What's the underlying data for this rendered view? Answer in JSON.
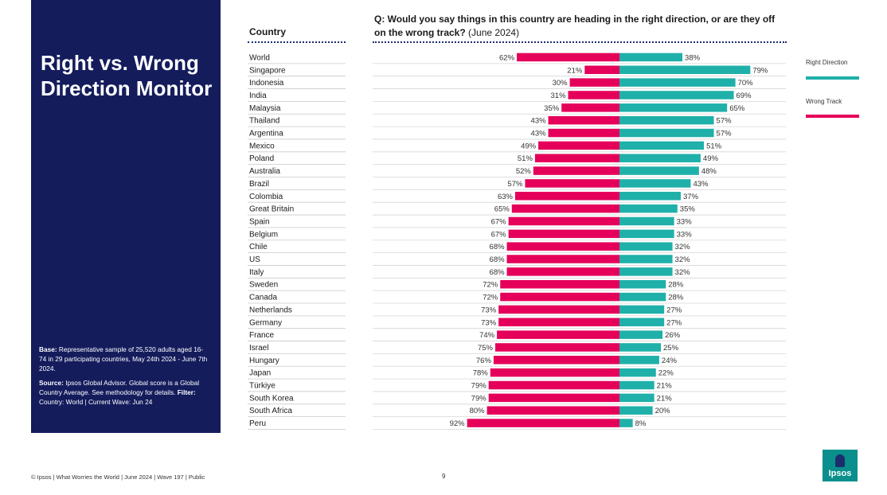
{
  "panel": {
    "title": "Right vs. Wrong Direction Monitor",
    "base_label": "Base:",
    "base_text": "Representative sample of 25,520 adults aged 16-74 in 29 participating countries, May 24th 2024 - June 7th 2024.",
    "source_label": "Source:",
    "source_text": "Ipsos Global Advisor. Global score is a Global Country Average. See methodology for details.",
    "filter_label": "Filter:",
    "filter_text": "Country: World | Current Wave: Jun 24"
  },
  "chart_data": {
    "type": "bar",
    "orientation": "diverging-horizontal",
    "question_bold": "Q: Would you say things in this country are heading in the right direction, or are they off on the wrong track?",
    "question_note": "(June 2024)",
    "category_header": "Country",
    "categories": [
      "World",
      "Singapore",
      "Indonesia",
      "India",
      "Malaysia",
      "Thailand",
      "Argentina",
      "Mexico",
      "Poland",
      "Australia",
      "Brazil",
      "Colombia",
      "Great Britain",
      "Spain",
      "Belgium",
      "Chile",
      "US",
      "Italy",
      "Sweden",
      "Canada",
      "Netherlands",
      "Germany",
      "France",
      "Israel",
      "Hungary",
      "Japan",
      "Türkiye",
      "South Korea",
      "South Africa",
      "Peru"
    ],
    "series": [
      {
        "name": "Right Direction",
        "color": "#1fb0a9",
        "values": [
          38,
          79,
          70,
          69,
          65,
          57,
          57,
          51,
          49,
          48,
          43,
          37,
          35,
          33,
          33,
          32,
          32,
          32,
          28,
          28,
          27,
          27,
          26,
          25,
          24,
          22,
          21,
          21,
          20,
          8
        ]
      },
      {
        "name": "Wrong Track",
        "color": "#e5005a",
        "values": [
          62,
          21,
          30,
          31,
          35,
          43,
          43,
          49,
          51,
          52,
          57,
          63,
          65,
          67,
          67,
          68,
          68,
          68,
          72,
          72,
          73,
          73,
          74,
          75,
          76,
          78,
          79,
          79,
          80,
          92
        ]
      }
    ],
    "value_suffix": "%",
    "legend_position": "right"
  },
  "footer": {
    "text": "© Ipsos | What Worries the World | June 2024 | Wave 197 | Public",
    "page_number": "9",
    "logo_text": "Ipsos"
  }
}
